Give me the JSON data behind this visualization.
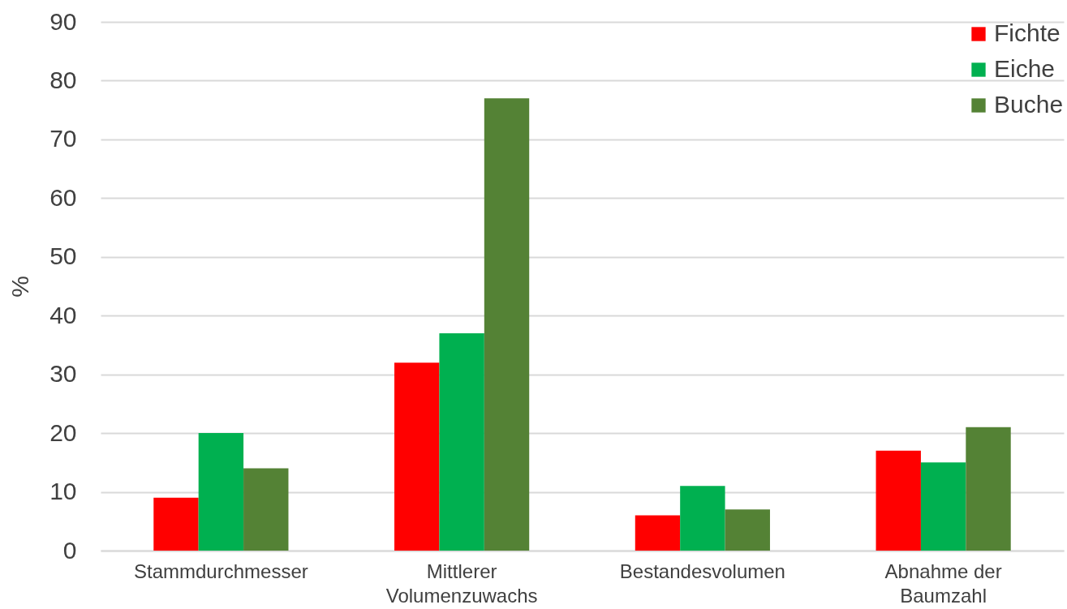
{
  "chart_data": {
    "type": "bar",
    "ylabel": "%",
    "categories": [
      "Stammdurchmesser",
      "Mittlerer\nVolumenzuwachs",
      "Bestandesvolumen",
      "Abnahme der\nBaumzahl"
    ],
    "series": [
      {
        "name": "Fichte",
        "color": "#ff0000",
        "values": [
          9,
          32,
          6,
          17
        ]
      },
      {
        "name": "Eiche",
        "color": "#00b050",
        "values": [
          20,
          37,
          11,
          15
        ]
      },
      {
        "name": "Buche",
        "color": "#548235",
        "values": [
          14,
          77,
          7,
          21
        ]
      }
    ],
    "ylim": [
      0,
      90
    ],
    "yticks": [
      0,
      10,
      20,
      30,
      40,
      50,
      60,
      70,
      80,
      90
    ],
    "grid": "y",
    "legend": "top right"
  }
}
